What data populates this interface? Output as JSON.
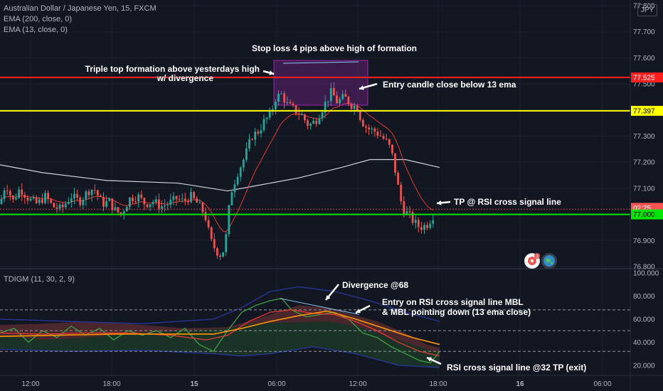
{
  "header": {
    "symbol_line": "Australian Dollar / Japanese Yen, 15, FXCM",
    "indicators": [
      "EMA (200, close, 0)",
      "EMA (13, close, 0)"
    ],
    "currency": "JPY",
    "lower_pane_title": "TDIGM (11, 30, 2, 9)"
  },
  "colors": {
    "background": "#131722",
    "up_candle": "#26a69a",
    "down_candle": "#ef5350",
    "ema200": "#d1d4dc",
    "ema13": "#e53935",
    "stop_line": "#ff1f1f",
    "entry_line": "#ffff00",
    "tp_line": "#00e600",
    "formation_box": "#9c27b0",
    "annotation_text": "#ffffff"
  },
  "chart_data": [
    {
      "type": "candlestick",
      "title": "Australian Dollar / Japanese Yen, 15, FXCM",
      "price_axis": {
        "range": [
          76.78,
          77.84
        ],
        "ticks": [
          "77.800",
          "77.700",
          "77.600",
          "77.500",
          "77.400",
          "77.300",
          "77.200",
          "77.100",
          "77.000",
          "76.900",
          "76.800"
        ]
      },
      "time_axis": {
        "ticks": [
          "12:00",
          "18:00",
          "15",
          "06:00",
          "12:00",
          "18:00",
          "16",
          "06:00"
        ]
      },
      "price_labels": [
        {
          "value": 77.525,
          "text": "77.525",
          "color": "#ff1f1f"
        },
        {
          "value": 77.397,
          "text": "77.397",
          "color": "#ffff00"
        },
        {
          "text": "02:25",
          "color": "#ff5252"
        },
        {
          "value": 77.0,
          "text": "77.000",
          "color": "#00e600"
        }
      ],
      "horizontal_lines": [
        {
          "name": "stop-loss",
          "value": 77.525
        },
        {
          "name": "entry",
          "value": 77.397
        },
        {
          "name": "take-profit",
          "value": 77.0
        }
      ],
      "annotations": [
        "Stop loss 4 pips above high of formation",
        "Triple top formation above yesterdays high",
        "w/ divergence",
        "Entry candle close below 13 ema",
        "TP @ RSI cross signal line"
      ]
    },
    {
      "type": "line",
      "title": "TDIGM (11, 30, 2, 9)",
      "y_axis": {
        "range": [
          10,
          100
        ],
        "ticks": [
          "100.000",
          "80.000",
          "60.000",
          "40.000",
          "20.000"
        ]
      },
      "levels": [
        68,
        50,
        32
      ],
      "annotations": [
        "Divergence @68",
        "Entry on RSI cross signal line MBL",
        "& MBL pointing down (13 ema close)",
        "RSI cross signal line @32 TP (exit)"
      ]
    }
  ]
}
